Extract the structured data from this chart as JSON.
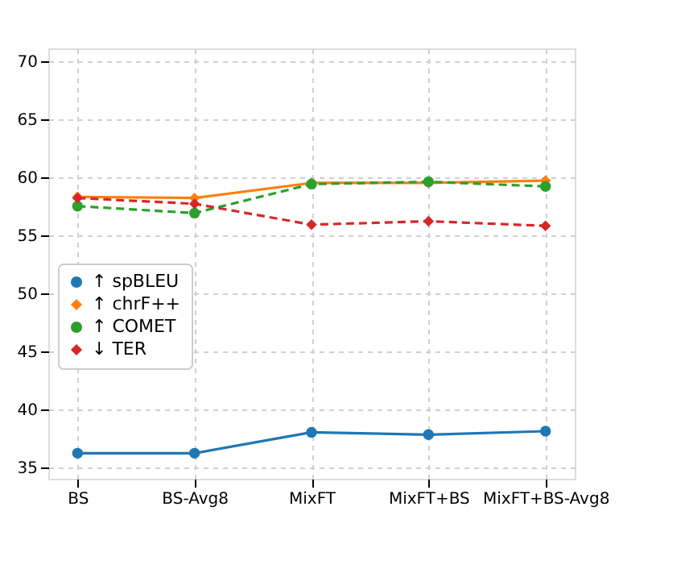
{
  "chart_data": {
    "type": "line",
    "categories": [
      "BS",
      "BS-Avg8",
      "MixFT",
      "MixFT+BS",
      "MixFT+BS-Avg8"
    ],
    "series": [
      {
        "name": "↑ spBLEU",
        "color": "#1f77b4",
        "marker": "circle",
        "line_style": "solid",
        "values": [
          36.2,
          36.2,
          38.0,
          37.8,
          38.1
        ]
      },
      {
        "name": "↑ chrF++",
        "color": "#ff7f0e",
        "marker": "diamond",
        "line_style": "solid",
        "values": [
          58.3,
          58.2,
          59.5,
          59.5,
          59.7
        ]
      },
      {
        "name": "↑ COMET",
        "color": "#2ca02c",
        "marker": "circle",
        "line_style": "dashed",
        "values": [
          57.5,
          56.9,
          59.4,
          59.6,
          59.2
        ]
      },
      {
        "name": "↓ TER",
        "color": "#d62728",
        "marker": "diamond",
        "line_style": "dashed",
        "values": [
          58.2,
          57.7,
          55.9,
          56.2,
          55.8
        ]
      }
    ],
    "ylim": [
      34,
      71.1
    ],
    "yticks": [
      35,
      40,
      45,
      50,
      55,
      60,
      65,
      70
    ],
    "grid": true,
    "legend": "left"
  }
}
